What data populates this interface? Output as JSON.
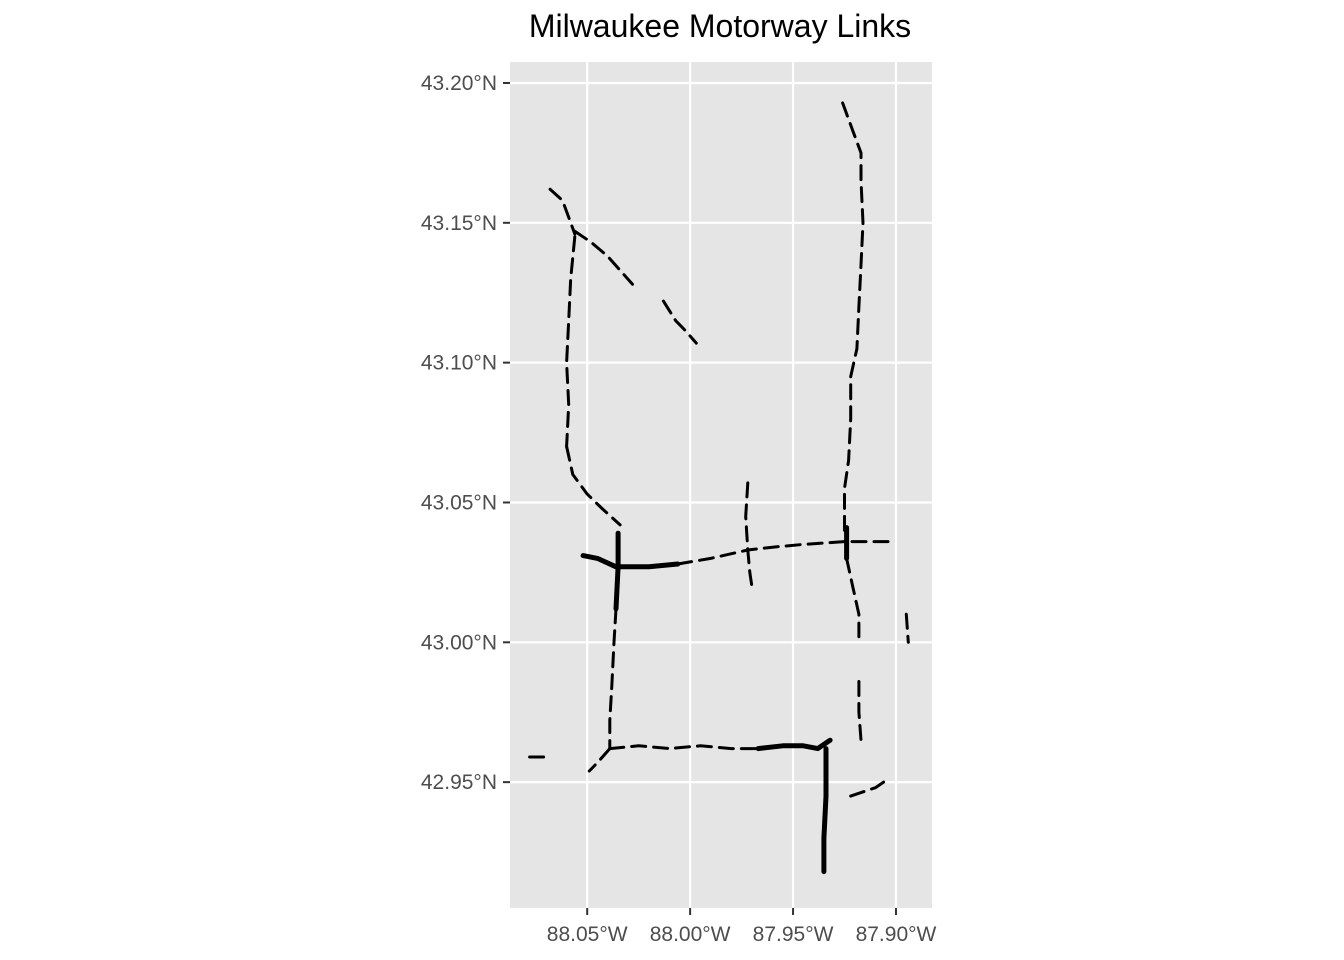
{
  "chart_data": {
    "type": "map",
    "title": "Milwaukee Motorway Links",
    "xlim": [
      -88.0875,
      -87.8825
    ],
    "ylim": [
      42.905,
      43.2075
    ],
    "background": "#e5e5e5",
    "grid": true,
    "line_color": "#000000",
    "x_ticks": [
      {
        "value": -88.05,
        "label": "88.05°W"
      },
      {
        "value": -88.0,
        "label": "88.00°W"
      },
      {
        "value": -87.95,
        "label": "87.95°W"
      },
      {
        "value": -87.9,
        "label": "87.90°W"
      }
    ],
    "y_ticks": [
      {
        "value": 43.2,
        "label": "43.20°N"
      },
      {
        "value": 43.15,
        "label": "43.15°N"
      },
      {
        "value": 43.1,
        "label": "43.10°N"
      },
      {
        "value": 43.05,
        "label": "43.05°N"
      },
      {
        "value": 43.0,
        "label": "43.00°N"
      },
      {
        "value": 42.95,
        "label": "42.95°N"
      }
    ],
    "segments": [
      {
        "major": false,
        "coords": [
          [
            -88.068,
            43.162
          ],
          [
            -88.062,
            43.158
          ],
          [
            -88.058,
            43.15
          ],
          [
            -88.056,
            43.146
          ]
        ]
      },
      {
        "major": false,
        "coords": [
          [
            -88.056,
            43.147
          ],
          [
            -88.048,
            43.143
          ],
          [
            -88.04,
            43.138
          ],
          [
            -88.028,
            43.128
          ]
        ]
      },
      {
        "major": false,
        "coords": [
          [
            -88.013,
            43.122
          ],
          [
            -88.007,
            43.115
          ],
          [
            -88.003,
            43.112
          ],
          [
            -87.997,
            43.107
          ]
        ]
      },
      {
        "major": false,
        "coords": [
          [
            -88.056,
            43.145
          ],
          [
            -88.058,
            43.13
          ],
          [
            -88.059,
            43.115
          ],
          [
            -88.06,
            43.1
          ],
          [
            -88.059,
            43.085
          ],
          [
            -88.06,
            43.07
          ]
        ]
      },
      {
        "major": false,
        "coords": [
          [
            -88.06,
            43.07
          ],
          [
            -88.057,
            43.06
          ],
          [
            -88.05,
            43.053
          ],
          [
            -88.043,
            43.048
          ],
          [
            -88.034,
            43.042
          ]
        ]
      },
      {
        "major": true,
        "coords": [
          [
            -88.052,
            43.031
          ],
          [
            -88.045,
            43.03
          ],
          [
            -88.036,
            43.027
          ],
          [
            -88.02,
            43.027
          ],
          [
            -88.006,
            43.028
          ]
        ]
      },
      {
        "major": true,
        "coords": [
          [
            -88.035,
            43.039
          ],
          [
            -88.035,
            43.027
          ],
          [
            -88.036,
            43.012
          ]
        ]
      },
      {
        "major": false,
        "coords": [
          [
            -88.036,
            43.012
          ],
          [
            -88.037,
            43.0
          ],
          [
            -88.038,
            42.985
          ],
          [
            -88.039,
            42.972
          ],
          [
            -88.039,
            42.962
          ]
        ]
      },
      {
        "major": false,
        "coords": [
          [
            -88.039,
            42.962
          ],
          [
            -88.045,
            42.957
          ],
          [
            -88.049,
            42.954
          ]
        ]
      },
      {
        "major": false,
        "coords": [
          [
            -88.078,
            42.959
          ],
          [
            -88.069,
            42.959
          ]
        ]
      },
      {
        "major": false,
        "coords": [
          [
            -88.039,
            42.962
          ],
          [
            -88.025,
            42.963
          ],
          [
            -88.01,
            42.962
          ],
          [
            -87.995,
            42.963
          ],
          [
            -87.98,
            42.962
          ],
          [
            -87.967,
            42.962
          ]
        ]
      },
      {
        "major": true,
        "coords": [
          [
            -87.967,
            42.962
          ],
          [
            -87.955,
            42.963
          ],
          [
            -87.945,
            42.963
          ],
          [
            -87.938,
            42.962
          ],
          [
            -87.932,
            42.965
          ]
        ]
      },
      {
        "major": true,
        "coords": [
          [
            -87.934,
            42.962
          ],
          [
            -87.934,
            42.945
          ],
          [
            -87.935,
            42.93
          ],
          [
            -87.935,
            42.918
          ]
        ]
      },
      {
        "major": false,
        "coords": [
          [
            -87.922,
            42.945
          ],
          [
            -87.91,
            42.948
          ],
          [
            -87.906,
            42.95
          ]
        ]
      },
      {
        "major": false,
        "coords": [
          [
            -88.006,
            43.028
          ],
          [
            -87.99,
            43.03
          ],
          [
            -87.972,
            43.033
          ],
          [
            -87.96,
            43.034
          ],
          [
            -87.945,
            43.035
          ],
          [
            -87.925,
            43.036
          ],
          [
            -87.9,
            43.036
          ]
        ]
      },
      {
        "major": false,
        "coords": [
          [
            -87.972,
            43.057
          ],
          [
            -87.973,
            43.045
          ],
          [
            -87.972,
            43.033
          ],
          [
            -87.971,
            43.025
          ],
          [
            -87.97,
            43.02
          ]
        ]
      },
      {
        "major": true,
        "coords": [
          [
            -87.924,
            43.041
          ],
          [
            -87.924,
            43.03
          ]
        ]
      },
      {
        "major": false,
        "coords": [
          [
            -87.924,
            43.03
          ],
          [
            -87.921,
            43.02
          ],
          [
            -87.918,
            43.01
          ],
          [
            -87.918,
            43.002
          ]
        ]
      },
      {
        "major": false,
        "coords": [
          [
            -87.918,
            42.986
          ],
          [
            -87.918,
            42.975
          ],
          [
            -87.917,
            42.965
          ]
        ]
      },
      {
        "major": false,
        "coords": [
          [
            -87.895,
            43.01
          ],
          [
            -87.894,
            43.0
          ]
        ]
      },
      {
        "major": false,
        "coords": [
          [
            -87.925,
            43.04
          ],
          [
            -87.925,
            43.055
          ],
          [
            -87.923,
            43.065
          ],
          [
            -87.922,
            43.08
          ],
          [
            -87.922,
            43.095
          ],
          [
            -87.919,
            43.105
          ],
          [
            -87.918,
            43.12
          ],
          [
            -87.917,
            43.135
          ],
          [
            -87.916,
            43.15
          ],
          [
            -87.917,
            43.165
          ],
          [
            -87.917,
            43.175
          ],
          [
            -87.921,
            43.183
          ],
          [
            -87.926,
            43.193
          ]
        ]
      }
    ]
  }
}
